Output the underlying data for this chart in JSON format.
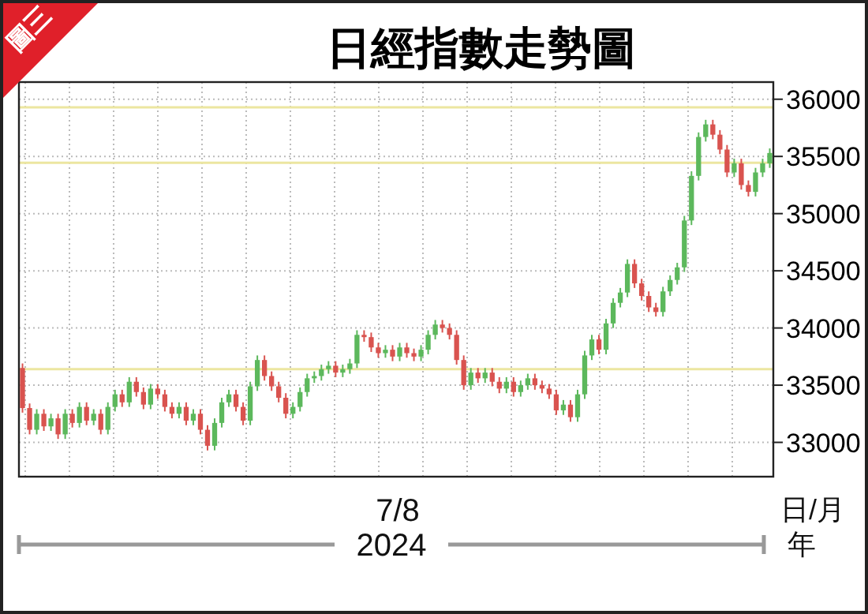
{
  "chart_data": {
    "type": "candlestick",
    "title": "日經指數走勢圖",
    "annotations": [
      "圖三",
      "7/8",
      "2024",
      "日/月",
      "年"
    ],
    "colors": [
      "#d9534f",
      "#d9534f",
      "#5cb85c",
      "#d9534f",
      "#5cb85c",
      "#d9534f",
      "#5cb85c",
      "#d9534f",
      "#5cb85c",
      "#d9534f",
      "#5cb85c",
      "#d9534f",
      "#5cb85c",
      "#5cb85c",
      "#d9534f",
      "#5cb85c",
      "#d9534f",
      "#d9534f",
      "#5cb85c",
      "#d9534f",
      "#d9534f",
      "#d9534f",
      "#5cb85c",
      "#d9534f",
      "#5cb85c",
      "#d9534f",
      "#d9534f",
      "#5cb85c",
      "#5cb85c",
      "#5cb85c",
      "#d9534f",
      "#d9534f",
      "#5cb85c",
      "#5cb85c",
      "#d9534f",
      "#d9534f",
      "#d9534f",
      "#d9534f",
      "#5cb85c",
      "#5cb85c",
      "#5cb85c",
      "#5cb85c",
      "#5cb85c",
      "#5cb85c",
      "#d9534f",
      "#5cb85c",
      "#5cb85c",
      "#5cb85c",
      "#d9534f",
      "#d9534f",
      "#d9534f",
      "#5cb85c",
      "#d9534f",
      "#5cb85c",
      "#d9534f",
      "#d9534f",
      "#5cb85c",
      "#5cb85c",
      "#5cb85c",
      "#d9534f",
      "#d9534f",
      "#d9534f",
      "#d9534f",
      "#5cb85c",
      "#d9534f",
      "#5cb85c",
      "#d9534f",
      "#d9534f",
      "#5cb85c",
      "#d9534f",
      "#5cb85c",
      "#5cb85c",
      "#d9534f",
      "#d9534f",
      "#d9534f",
      "#d9534f",
      "#5cb85c",
      "#d9534f",
      "#5cb85c",
      "#5cb85c",
      "#5cb85c",
      "#d9534f",
      "#5cb85c",
      "#5cb85c",
      "#5cb85c",
      "#5cb85c",
      "#d9534f",
      "#d9534f",
      "#d9534f",
      "#d9534f",
      "#5cb85c",
      "#5cb85c",
      "#5cb85c",
      "#5cb85c",
      "#5cb85c",
      "#5cb85c",
      "#5cb85c",
      "#d9534f",
      "#d9534f",
      "#d9534f",
      "#5cb85c",
      "#d9534f",
      "#d9534f",
      "#5cb85c",
      "#5cb85c",
      "#5cb85c"
    ],
    "ylim": [
      32700,
      36150
    ],
    "yticks": [
      33000,
      33500,
      34000,
      34500,
      35000,
      35500,
      36000
    ],
    "tick_labels": "y",
    "grid": true,
    "ref_lines": [
      {
        "axis": "y",
        "value": 35930,
        "color": "#ece6a0"
      },
      {
        "axis": "y",
        "value": 33640,
        "color": "#ece6a0"
      },
      {
        "axis": "y",
        "value": 35445,
        "color": "#ece6a0"
      }
    ],
    "categories": [
      null,
      null,
      null,
      null,
      null,
      null,
      null,
      null,
      null,
      null,
      null,
      null,
      null,
      null,
      null,
      null,
      null,
      null,
      null,
      null,
      null,
      null,
      null,
      null,
      null,
      null,
      null,
      null,
      null,
      null,
      null,
      null,
      null,
      null,
      null,
      null,
      null,
      null,
      null,
      null,
      null,
      null,
      null,
      null,
      null,
      null,
      null,
      null,
      null,
      null,
      null,
      null,
      null,
      null,
      null,
      null,
      null,
      null,
      null,
      null,
      null,
      null,
      null,
      null,
      null,
      null,
      null,
      null,
      null,
      null,
      null,
      null,
      null,
      null,
      null,
      null,
      null,
      null,
      null,
      null,
      null,
      null,
      null,
      null,
      null,
      null,
      null,
      null,
      null,
      null,
      null,
      null,
      null,
      null,
      null,
      null,
      null,
      null,
      null,
      null,
      null,
      null,
      null,
      null,
      null,
      null
    ],
    "ohlc": [
      [
        33650,
        33690,
        33260,
        33300
      ],
      [
        33300,
        33340,
        33070,
        33110
      ],
      [
        33110,
        33290,
        33070,
        33250
      ],
      [
        33250,
        33290,
        33100,
        33140
      ],
      [
        33140,
        33250,
        33100,
        33210
      ],
      [
        33210,
        33250,
        33030,
        33070
      ],
      [
        33070,
        33290,
        33030,
        33250
      ],
      [
        33250,
        33290,
        33130,
        33170
      ],
      [
        33170,
        33350,
        33130,
        33310
      ],
      [
        33310,
        33350,
        33150,
        33190
      ],
      [
        33190,
        33290,
        33150,
        33250
      ],
      [
        33250,
        33290,
        33070,
        33110
      ],
      [
        33110,
        33350,
        33070,
        33310
      ],
      [
        33310,
        33460,
        33270,
        33420
      ],
      [
        33420,
        33460,
        33310,
        33350
      ],
      [
        33350,
        33570,
        33310,
        33530
      ],
      [
        33530,
        33570,
        33400,
        33440
      ],
      [
        33440,
        33480,
        33290,
        33330
      ],
      [
        33330,
        33510,
        33290,
        33470
      ],
      [
        33470,
        33510,
        33380,
        33420
      ],
      [
        33420,
        33460,
        33270,
        33310
      ],
      [
        33310,
        33350,
        33210,
        33250
      ],
      [
        33250,
        33350,
        33210,
        33310
      ],
      [
        33310,
        33350,
        33150,
        33190
      ],
      [
        33190,
        33290,
        33150,
        33250
      ],
      [
        33250,
        33290,
        33070,
        33110
      ],
      [
        33110,
        33150,
        32930,
        32970
      ],
      [
        32970,
        33210,
        32930,
        33170
      ],
      [
        33170,
        33390,
        33130,
        33350
      ],
      [
        33350,
        33460,
        33310,
        33420
      ],
      [
        33420,
        33460,
        33270,
        33310
      ],
      [
        33310,
        33350,
        33150,
        33190
      ],
      [
        33190,
        33530,
        33150,
        33490
      ],
      [
        33490,
        33760,
        33450,
        33720
      ],
      [
        33720,
        33760,
        33540,
        33580
      ],
      [
        33580,
        33620,
        33450,
        33490
      ],
      [
        33490,
        33530,
        33350,
        33390
      ],
      [
        33390,
        33430,
        33210,
        33250
      ],
      [
        33250,
        33350,
        33210,
        33310
      ],
      [
        33310,
        33480,
        33270,
        33440
      ],
      [
        33440,
        33600,
        33400,
        33560
      ],
      [
        33560,
        33620,
        33520,
        33580
      ],
      [
        33580,
        33680,
        33540,
        33640
      ],
      [
        33640,
        33710,
        33600,
        33670
      ],
      [
        33670,
        33710,
        33570,
        33610
      ],
      [
        33610,
        33680,
        33570,
        33640
      ],
      [
        33640,
        33730,
        33600,
        33690
      ],
      [
        33690,
        33980,
        33650,
        33940
      ],
      [
        33940,
        33980,
        33880,
        33920
      ],
      [
        33920,
        33960,
        33790,
        33830
      ],
      [
        33830,
        33870,
        33740,
        33780
      ],
      [
        33780,
        33850,
        33740,
        33810
      ],
      [
        33810,
        33850,
        33710,
        33750
      ],
      [
        33750,
        33870,
        33710,
        33830
      ],
      [
        33830,
        33870,
        33740,
        33780
      ],
      [
        33780,
        33820,
        33710,
        33750
      ],
      [
        33750,
        33850,
        33710,
        33810
      ],
      [
        33810,
        33980,
        33770,
        33940
      ],
      [
        33940,
        34070,
        33900,
        34030
      ],
      [
        34030,
        34070,
        33960,
        34000
      ],
      [
        34000,
        34040,
        33900,
        33940
      ],
      [
        33940,
        33980,
        33680,
        33720
      ],
      [
        33720,
        33760,
        33460,
        33500
      ],
      [
        33500,
        33650,
        33460,
        33610
      ],
      [
        33610,
        33650,
        33520,
        33560
      ],
      [
        33560,
        33650,
        33520,
        33610
      ],
      [
        33610,
        33650,
        33490,
        33530
      ],
      [
        33530,
        33570,
        33430,
        33470
      ],
      [
        33470,
        33570,
        33430,
        33530
      ],
      [
        33530,
        33570,
        33400,
        33440
      ],
      [
        33440,
        33540,
        33400,
        33500
      ],
      [
        33500,
        33600,
        33460,
        33560
      ],
      [
        33560,
        33600,
        33460,
        33500
      ],
      [
        33500,
        33540,
        33430,
        33470
      ],
      [
        33470,
        33510,
        33380,
        33420
      ],
      [
        33420,
        33460,
        33240,
        33280
      ],
      [
        33280,
        33370,
        33240,
        33330
      ],
      [
        33330,
        33370,
        33180,
        33220
      ],
      [
        33220,
        33460,
        33180,
        33420
      ],
      [
        33420,
        33800,
        33380,
        33760
      ],
      [
        33760,
        33940,
        33720,
        33900
      ],
      [
        33900,
        33940,
        33770,
        33810
      ],
      [
        33810,
        34080,
        33770,
        34040
      ],
      [
        34040,
        34260,
        34000,
        34220
      ],
      [
        34220,
        34350,
        34180,
        34310
      ],
      [
        34310,
        34600,
        34270,
        34560
      ],
      [
        34560,
        34600,
        34350,
        34390
      ],
      [
        34390,
        34430,
        34240,
        34280
      ],
      [
        34280,
        34320,
        34140,
        34180
      ],
      [
        34180,
        34220,
        34100,
        34140
      ],
      [
        34140,
        34360,
        34100,
        34320
      ],
      [
        34320,
        34460,
        34280,
        34420
      ],
      [
        34420,
        34570,
        34380,
        34530
      ],
      [
        34530,
        34980,
        34490,
        34940
      ],
      [
        34940,
        35370,
        34900,
        35330
      ],
      [
        35330,
        35710,
        35290,
        35670
      ],
      [
        35670,
        35820,
        35630,
        35780
      ],
      [
        35780,
        35820,
        35650,
        35690
      ],
      [
        35690,
        35730,
        35520,
        35560
      ],
      [
        35560,
        35600,
        35320,
        35360
      ],
      [
        35360,
        35480,
        35320,
        35440
      ],
      [
        35440,
        35480,
        35210,
        35250
      ],
      [
        35250,
        35290,
        35150,
        35190
      ],
      [
        35190,
        35400,
        35150,
        35360
      ],
      [
        35360,
        35480,
        35320,
        35440
      ],
      [
        35440,
        35570,
        35400,
        35530
      ]
    ]
  }
}
